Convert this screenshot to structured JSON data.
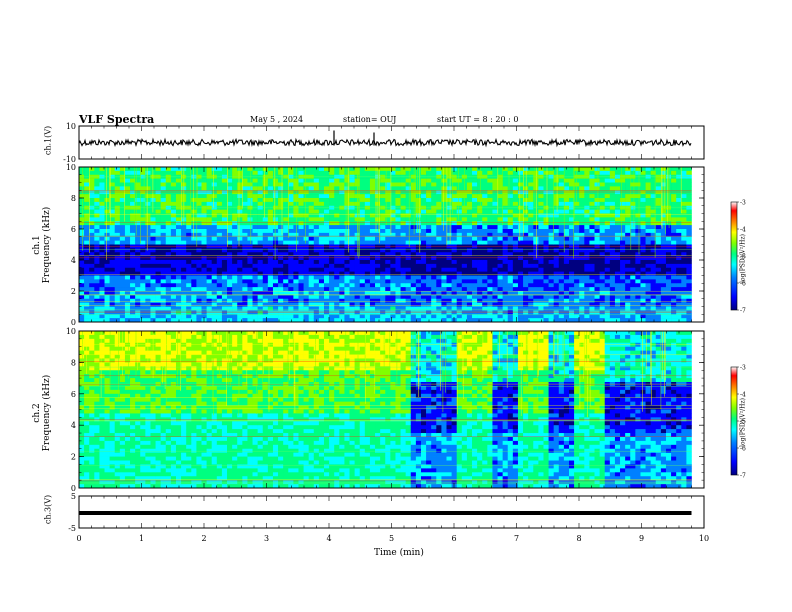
{
  "header": {
    "title": "VLF Spectra",
    "date": "May 5 , 2024",
    "station": "station= OUJ",
    "start_ut": "start UT = 8 : 20 : 0"
  },
  "colorbar": {
    "label": "log(PSD)(V²/Hz)",
    "ticks": [
      "-3",
      "-4",
      "-5",
      "-6",
      "-7"
    ],
    "range": [
      -7,
      -3
    ],
    "colors": [
      "#000080",
      "#0000ff",
      "#0080ff",
      "#00ffff",
      "#00ff80",
      "#80ff00",
      "#ffff00",
      "#ff8000",
      "#ff0000",
      "#ffffff"
    ]
  },
  "chart_data": [
    {
      "type": "line",
      "panel": "ch1-waveform",
      "ylabel": "ch.1(V)",
      "ylim": [
        -10,
        10
      ],
      "y_ticks": [
        "10",
        "-10"
      ],
      "x_range_min": [
        0,
        10
      ],
      "description_values": {
        "mean": 0,
        "amplitude": 1.5
      }
    },
    {
      "type": "heatmap",
      "panel": "ch1-spectrogram",
      "ylabel": "ch.1\nFrequency (kHz)",
      "ylim": [
        0,
        10
      ],
      "y_ticks": [
        "0",
        "2",
        "4",
        "6",
        "8",
        "10"
      ],
      "x_range_min": [
        0,
        10
      ],
      "data_end_min": 9.8,
      "z_range": [
        -7,
        -3
      ]
    },
    {
      "type": "heatmap",
      "panel": "ch2-spectrogram",
      "ylabel": "ch.2\nFrequency (kHz)",
      "ylim": [
        0,
        10
      ],
      "y_ticks": [
        "0",
        "2",
        "4",
        "6",
        "8",
        "10"
      ],
      "x_range_min": [
        0,
        10
      ],
      "data_end_min": 9.8,
      "z_range": [
        -7,
        -3
      ],
      "quiet_intervals_min": [
        [
          5.3,
          6.0
        ],
        [
          6.6,
          7.0
        ],
        [
          7.5,
          7.85
        ],
        [
          8.4,
          9.8
        ]
      ]
    },
    {
      "type": "line",
      "panel": "ch3-waveform",
      "ylabel": "ch.3(V)",
      "ylim": [
        -5,
        5
      ],
      "y_ticks": [
        "5",
        "-5"
      ],
      "constant_value": -0.3,
      "x_range_min": [
        0,
        10
      ]
    }
  ],
  "x_axis": {
    "label": "Time (min)",
    "ticks": [
      "0",
      "1",
      "2",
      "3",
      "4",
      "5",
      "6",
      "7",
      "8",
      "9",
      "10"
    ]
  }
}
